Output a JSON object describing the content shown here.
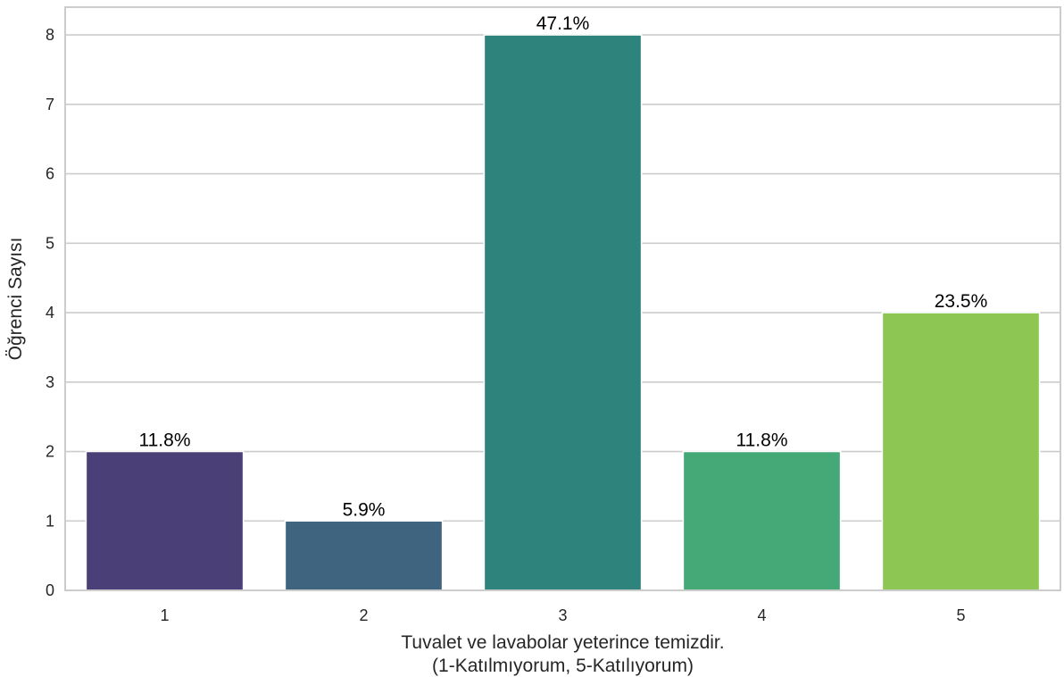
{
  "chart_data": {
    "type": "bar",
    "categories": [
      "1",
      "2",
      "3",
      "4",
      "5"
    ],
    "values": [
      2,
      1,
      8,
      2,
      4
    ],
    "data_labels": [
      "11.8%",
      "5.9%",
      "47.1%",
      "11.8%",
      "23.5%"
    ],
    "colors": [
      "#4b3f78",
      "#3e647f",
      "#2e837d",
      "#45a877",
      "#8dc653"
    ],
    "title": "",
    "xlabel_line1": "Tuvalet ve lavabolar yeterince temizdir.",
    "xlabel_line2": "(1-Katılmıyorum, 5-Katılıyorum)",
    "ylabel": "Öğrenci Sayısı",
    "ylim": [
      0,
      8.4
    ],
    "yticks": [
      0,
      1,
      2,
      3,
      4,
      5,
      6,
      7,
      8
    ],
    "grid": "horizontal",
    "legend": "none"
  }
}
